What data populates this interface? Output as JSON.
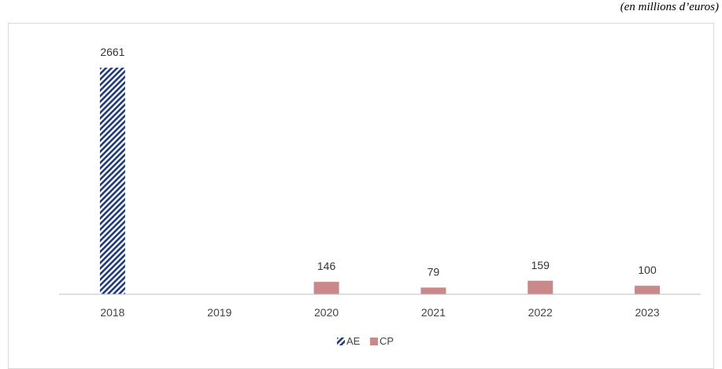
{
  "unit_caption": "(en millions d’euros)",
  "chart_data": {
    "type": "bar",
    "categories": [
      "2018",
      "2019",
      "2020",
      "2021",
      "2022",
      "2023"
    ],
    "series": [
      {
        "name": "AE",
        "values": [
          2661,
          null,
          null,
          null,
          null,
          null
        ],
        "color": "#1f3a7a",
        "pattern": "diagonal-hatch"
      },
      {
        "name": "CP",
        "values": [
          null,
          null,
          146,
          79,
          159,
          100
        ],
        "color": "#c9898a"
      }
    ],
    "ylim": [
      0,
      2900
    ],
    "grid": false,
    "legend": "bottom-center",
    "title": "",
    "xlabel": "",
    "ylabel": ""
  }
}
